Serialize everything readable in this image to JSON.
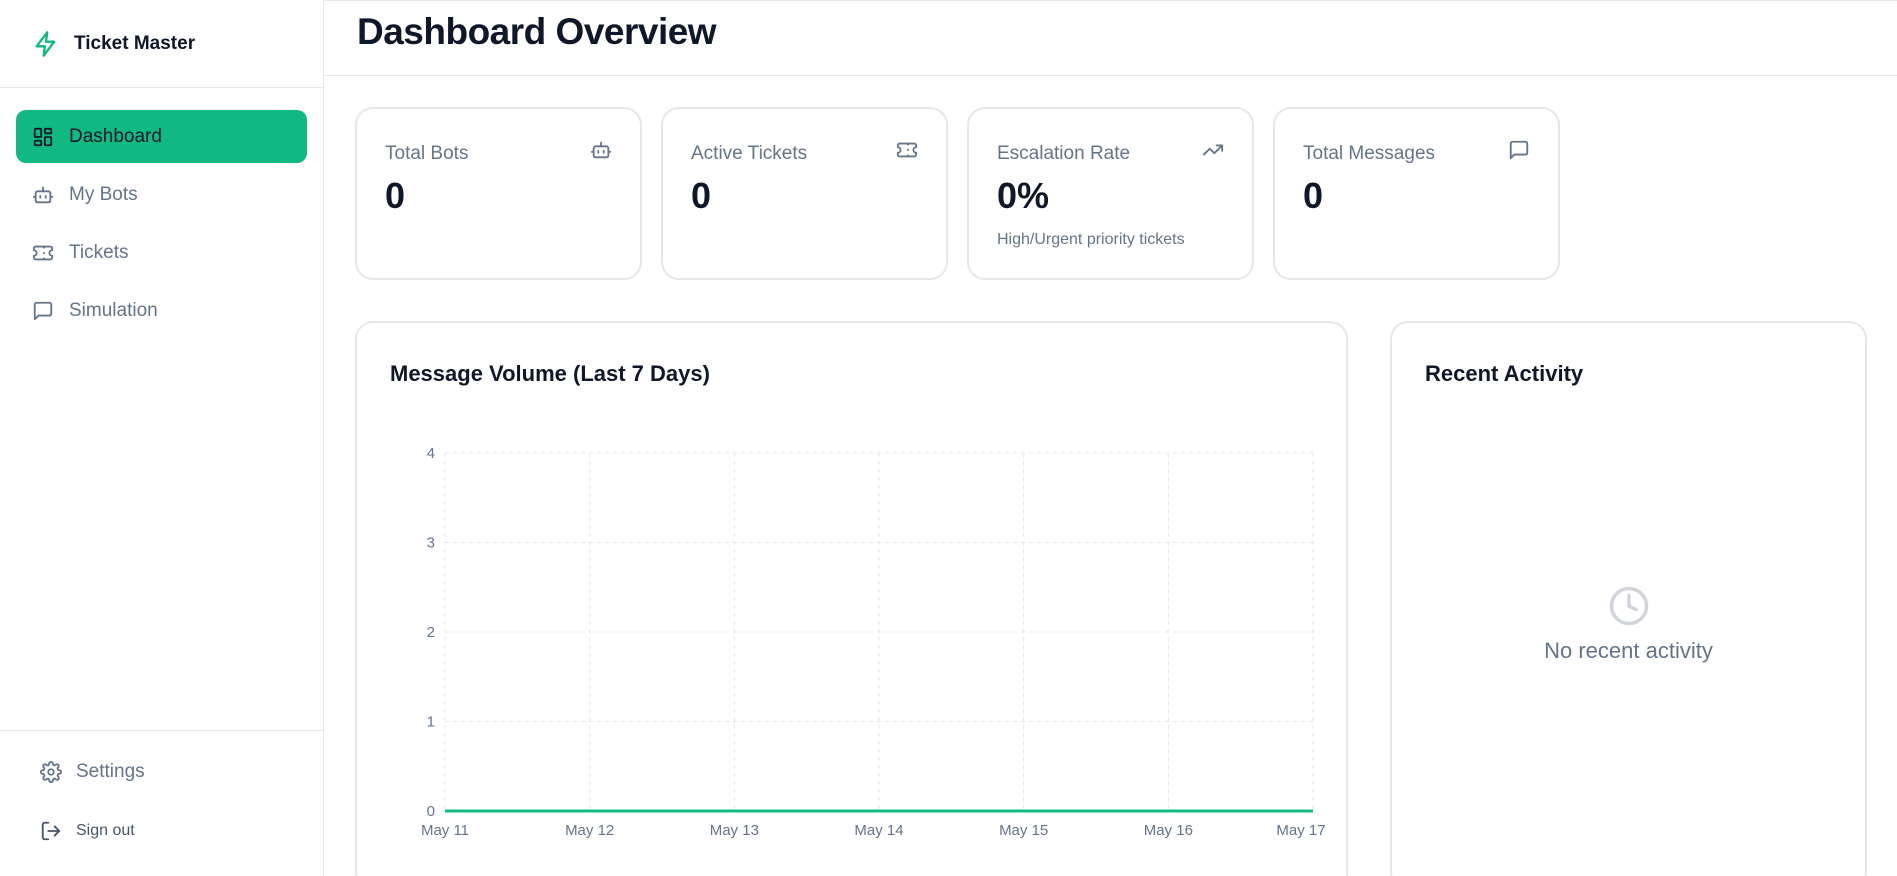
{
  "brand": {
    "title": "Ticket Master",
    "icon": "lightning-icon",
    "accent": "#10b981"
  },
  "nav": {
    "items": [
      {
        "label": "Dashboard",
        "icon": "grid-icon",
        "active": true
      },
      {
        "label": "My Bots",
        "icon": "bot-icon",
        "active": false
      },
      {
        "label": "Tickets",
        "icon": "ticket-icon",
        "active": false
      },
      {
        "label": "Simulation",
        "icon": "message-icon",
        "active": false
      }
    ],
    "settings_label": "Settings",
    "signout_label": "Sign out"
  },
  "header": {
    "title": "Dashboard Overview"
  },
  "stats": [
    {
      "label": "Total Bots",
      "value": "0",
      "sub": "",
      "icon": "bot-icon"
    },
    {
      "label": "Active Tickets",
      "value": "0",
      "sub": "",
      "icon": "ticket-icon"
    },
    {
      "label": "Escalation Rate",
      "value": "0%",
      "sub": "High/Urgent priority tickets",
      "icon": "trending-up-icon"
    },
    {
      "label": "Total Messages",
      "value": "0",
      "sub": "",
      "icon": "message-icon"
    }
  ],
  "chart_panel": {
    "title": "Message Volume (Last 7 Days)"
  },
  "chart_data": {
    "type": "line",
    "title": "Message Volume (Last 7 Days)",
    "categories": [
      "May 11",
      "May 12",
      "May 13",
      "May 14",
      "May 15",
      "May 16",
      "May 17"
    ],
    "series": [
      {
        "values": [
          0,
          0,
          0,
          0,
          0,
          0,
          0
        ],
        "color": "#10b981"
      }
    ],
    "yticks": [
      "0",
      "1",
      "2",
      "3",
      "4"
    ],
    "ylim": [
      0,
      4
    ],
    "grid": true,
    "xlabel": "",
    "ylabel": ""
  },
  "activity_panel": {
    "title": "Recent Activity",
    "empty_text": "No recent activity",
    "empty_icon": "clock-icon"
  }
}
